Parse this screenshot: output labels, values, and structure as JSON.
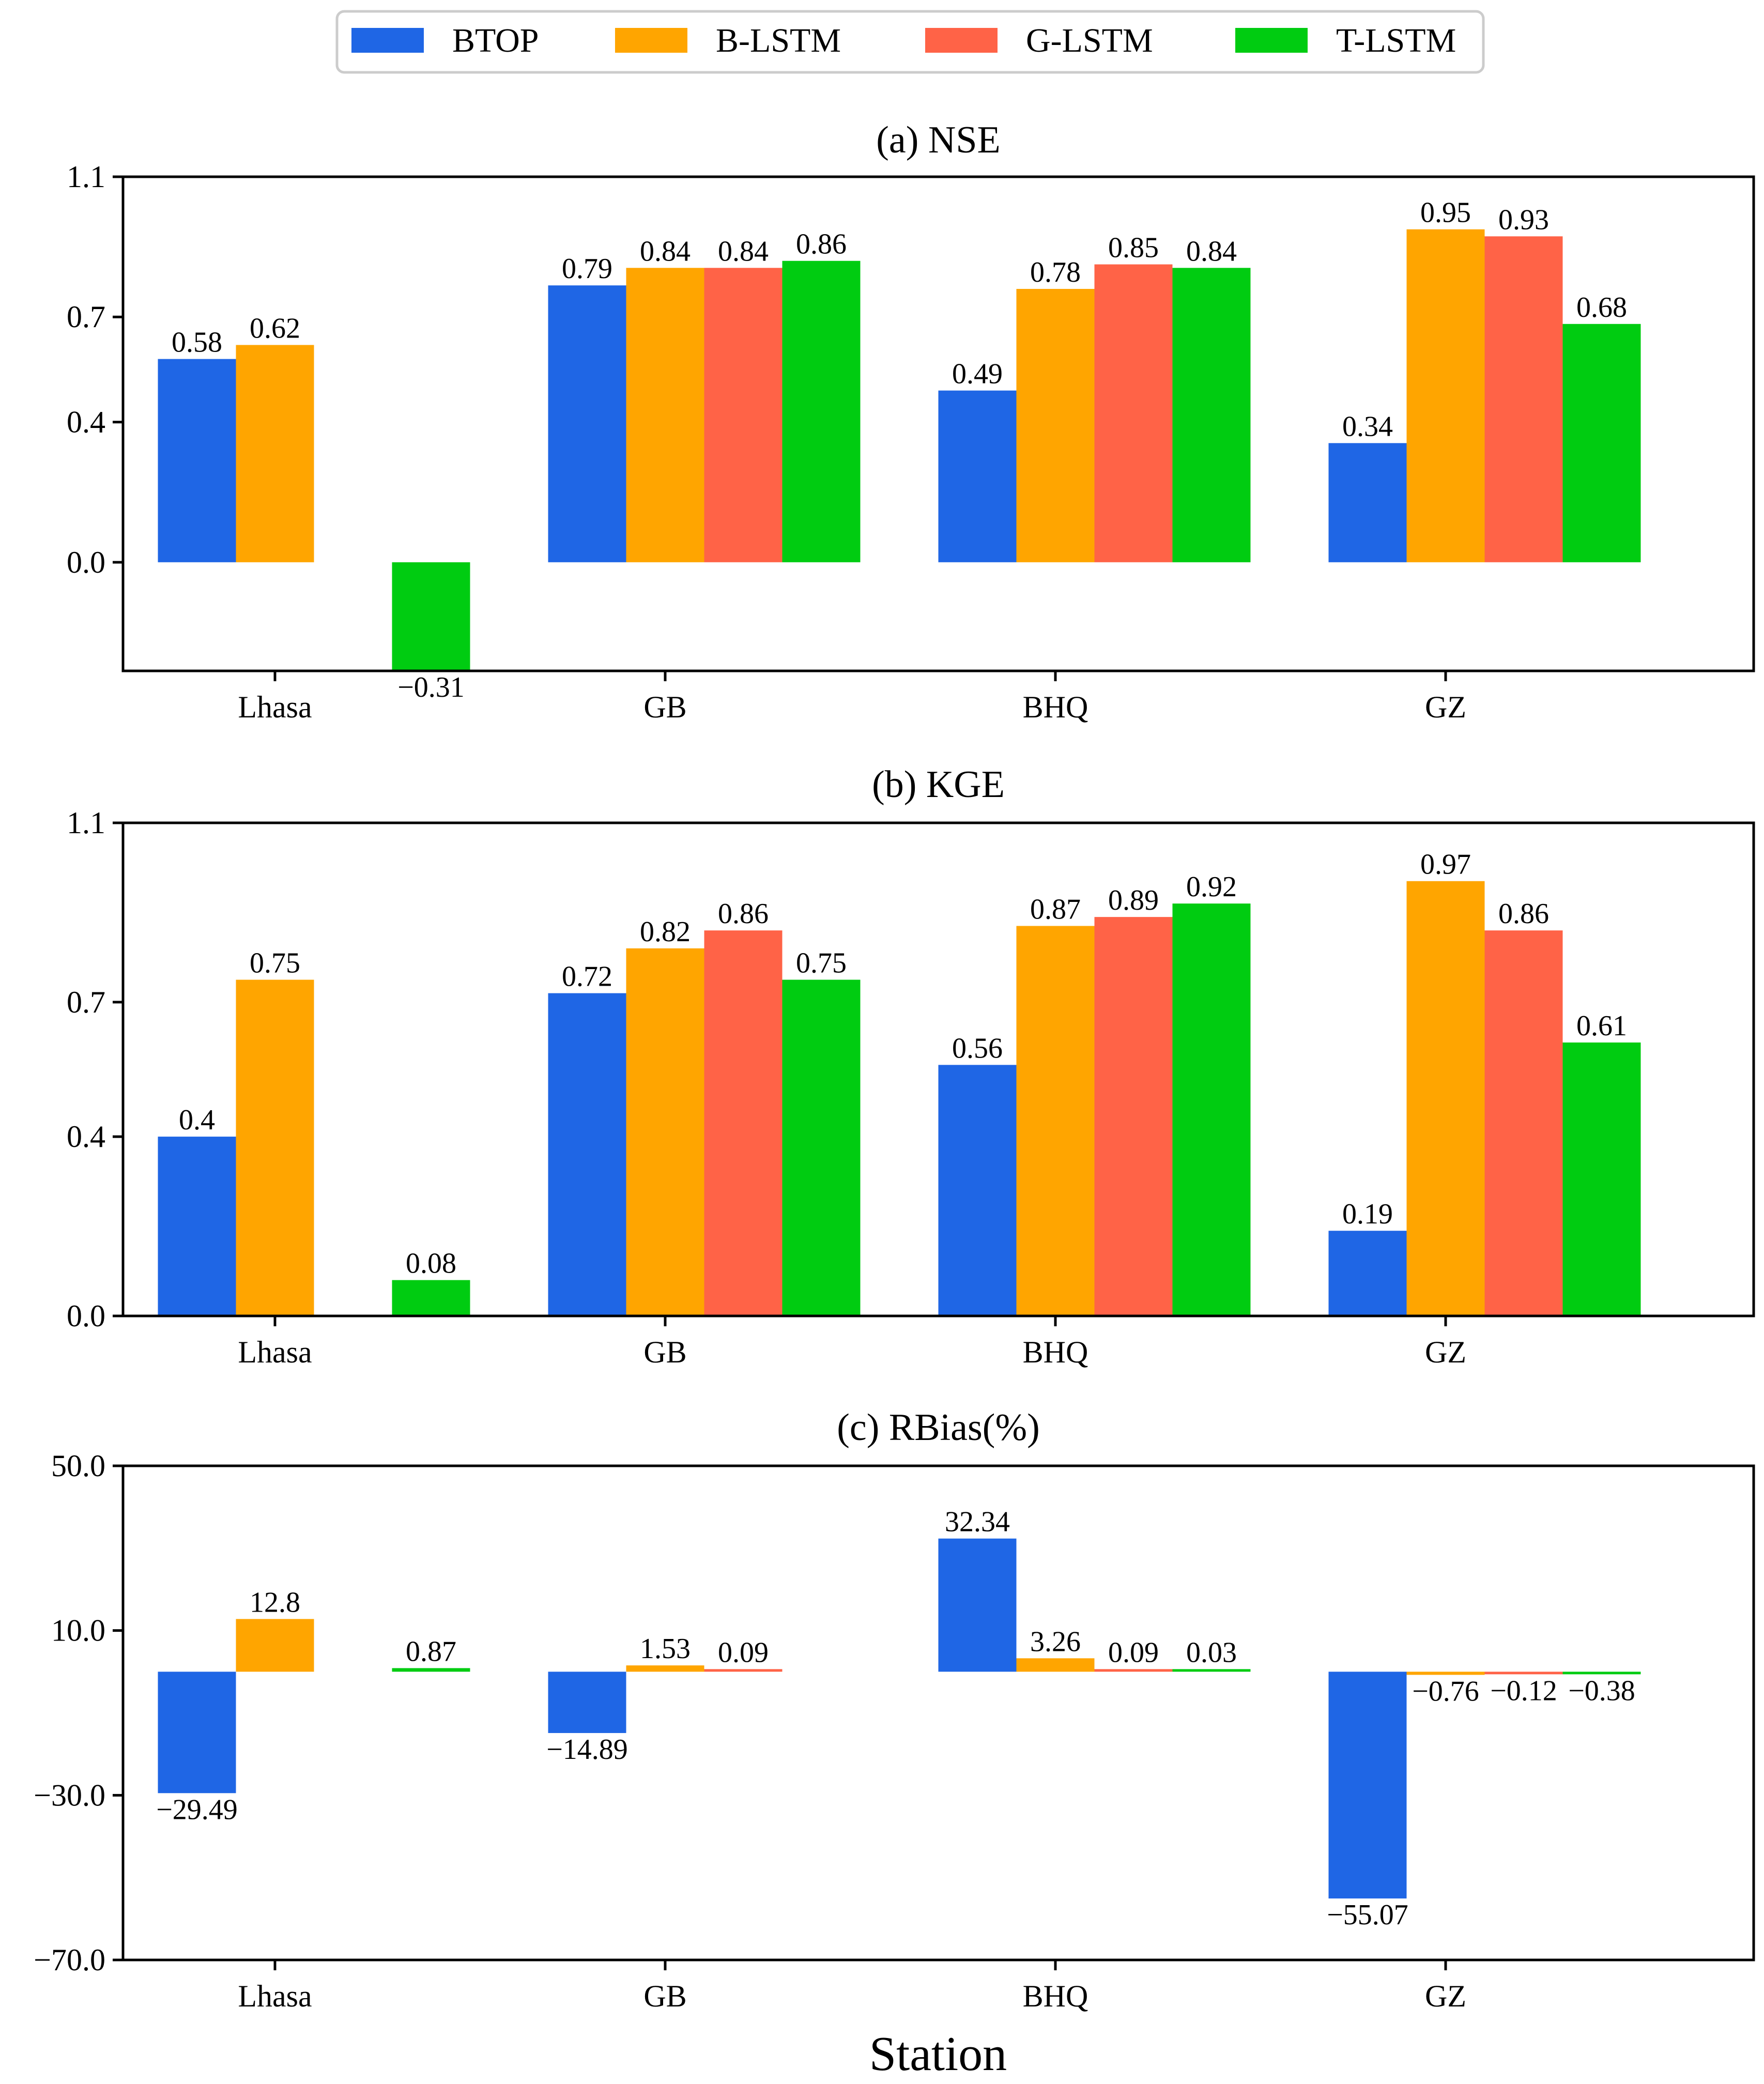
{
  "chart_data": {
    "type": "bar",
    "xlabel": "Station",
    "categories": [
      "Lhasa",
      "GB",
      "BHQ",
      "GZ"
    ],
    "legend": {
      "placement": "top-center",
      "entries": [
        {
          "name": "BTOP",
          "color": "#1f66e5"
        },
        {
          "name": "B-LSTM",
          "color": "#ffa500"
        },
        {
          "name": "G-LSTM",
          "color": "#ff6347"
        },
        {
          "name": "T-LSTM",
          "color": "#00cc11"
        }
      ]
    },
    "panels": [
      {
        "title": "(a) NSE",
        "ylim": [
          -0.31,
          1.1
        ],
        "yticks": [
          "1.1",
          "0.7",
          "0.4",
          "0.0"
        ],
        "ytick_values": [
          1.1,
          0.7,
          0.4,
          0.0
        ],
        "series": [
          {
            "name": "BTOP",
            "values": [
              0.58,
              0.79,
              0.49,
              0.34
            ],
            "labels": [
              "0.58",
              "0.79",
              "0.49",
              "0.34"
            ]
          },
          {
            "name": "B-LSTM",
            "values": [
              0.62,
              0.84,
              0.78,
              0.95
            ],
            "labels": [
              "0.62",
              "0.84",
              "0.78",
              "0.95"
            ]
          },
          {
            "name": "G-LSTM",
            "values": [
              null,
              0.84,
              0.85,
              0.93
            ],
            "labels": [
              null,
              "0.84",
              "0.85",
              "0.93"
            ]
          },
          {
            "name": "T-LSTM",
            "values": [
              -0.31,
              0.86,
              0.84,
              0.68
            ],
            "labels": [
              "−0.31",
              "0.86",
              "0.84",
              "0.68"
            ]
          }
        ]
      },
      {
        "title": "(b) KGE",
        "ylim": [
          0.0,
          1.1
        ],
        "yticks": [
          "1.1",
          "0.7",
          "0.4",
          "0.0"
        ],
        "ytick_values": [
          1.1,
          0.7,
          0.4,
          0.0
        ],
        "series": [
          {
            "name": "BTOP",
            "values": [
              0.4,
              0.72,
              0.56,
              0.19
            ],
            "labels": [
              "0.4",
              "0.72",
              "0.56",
              "0.19"
            ]
          },
          {
            "name": "B-LSTM",
            "values": [
              0.75,
              0.82,
              0.87,
              0.97
            ],
            "labels": [
              "0.75",
              "0.82",
              "0.87",
              "0.97"
            ]
          },
          {
            "name": "G-LSTM",
            "values": [
              null,
              0.86,
              0.89,
              0.86
            ],
            "labels": [
              null,
              "0.86",
              "0.89",
              "0.86"
            ]
          },
          {
            "name": "T-LSTM",
            "values": [
              0.08,
              0.75,
              0.92,
              0.61
            ],
            "labels": [
              "0.08",
              "0.75",
              "0.92",
              "0.61"
            ]
          }
        ]
      },
      {
        "title": "(c) RBias(%)",
        "ylim": [
          -70.0,
          50.0
        ],
        "yticks": [
          "50.0",
          "10.0",
          "−30.0",
          "−70.0"
        ],
        "ytick_values": [
          50.0,
          10.0,
          -30.0,
          -70.0
        ],
        "series": [
          {
            "name": "BTOP",
            "values": [
              -29.49,
              -14.89,
              32.34,
              -55.07
            ],
            "labels": [
              "−29.49",
              "−14.89",
              "32.34",
              "−55.07"
            ]
          },
          {
            "name": "B-LSTM",
            "values": [
              12.8,
              1.53,
              3.26,
              -0.76
            ],
            "labels": [
              "12.8",
              "1.53",
              "3.26",
              "−0.76"
            ]
          },
          {
            "name": "G-LSTM",
            "values": [
              null,
              0.09,
              0.09,
              -0.12
            ],
            "labels": [
              null,
              "0.09",
              "0.09",
              "−0.12"
            ]
          },
          {
            "name": "T-LSTM",
            "values": [
              0.87,
              null,
              0.03,
              -0.38
            ],
            "labels": [
              "0.87",
              null,
              "0.03",
              "−0.38"
            ]
          }
        ]
      }
    ]
  }
}
